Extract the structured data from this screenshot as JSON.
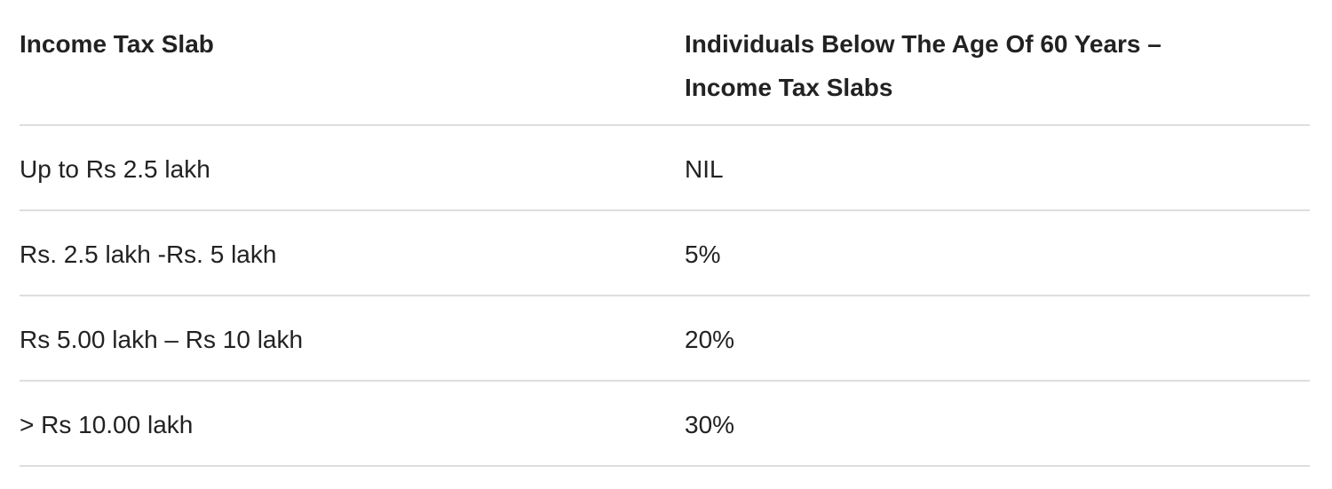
{
  "table": {
    "header": [
      "Income Tax Slab",
      "Individuals Below The Age Of 60 Years – Income Tax Slabs"
    ],
    "rows": [
      [
        "Up to Rs 2.5 lakh",
        "NIL"
      ],
      [
        "Rs. 2.5 lakh -Rs. 5 lakh",
        "5%"
      ],
      [
        "Rs 5.00 lakh – Rs 10 lakh",
        "20%"
      ],
      [
        "> Rs 10.00 lakh",
        "30%"
      ]
    ]
  }
}
